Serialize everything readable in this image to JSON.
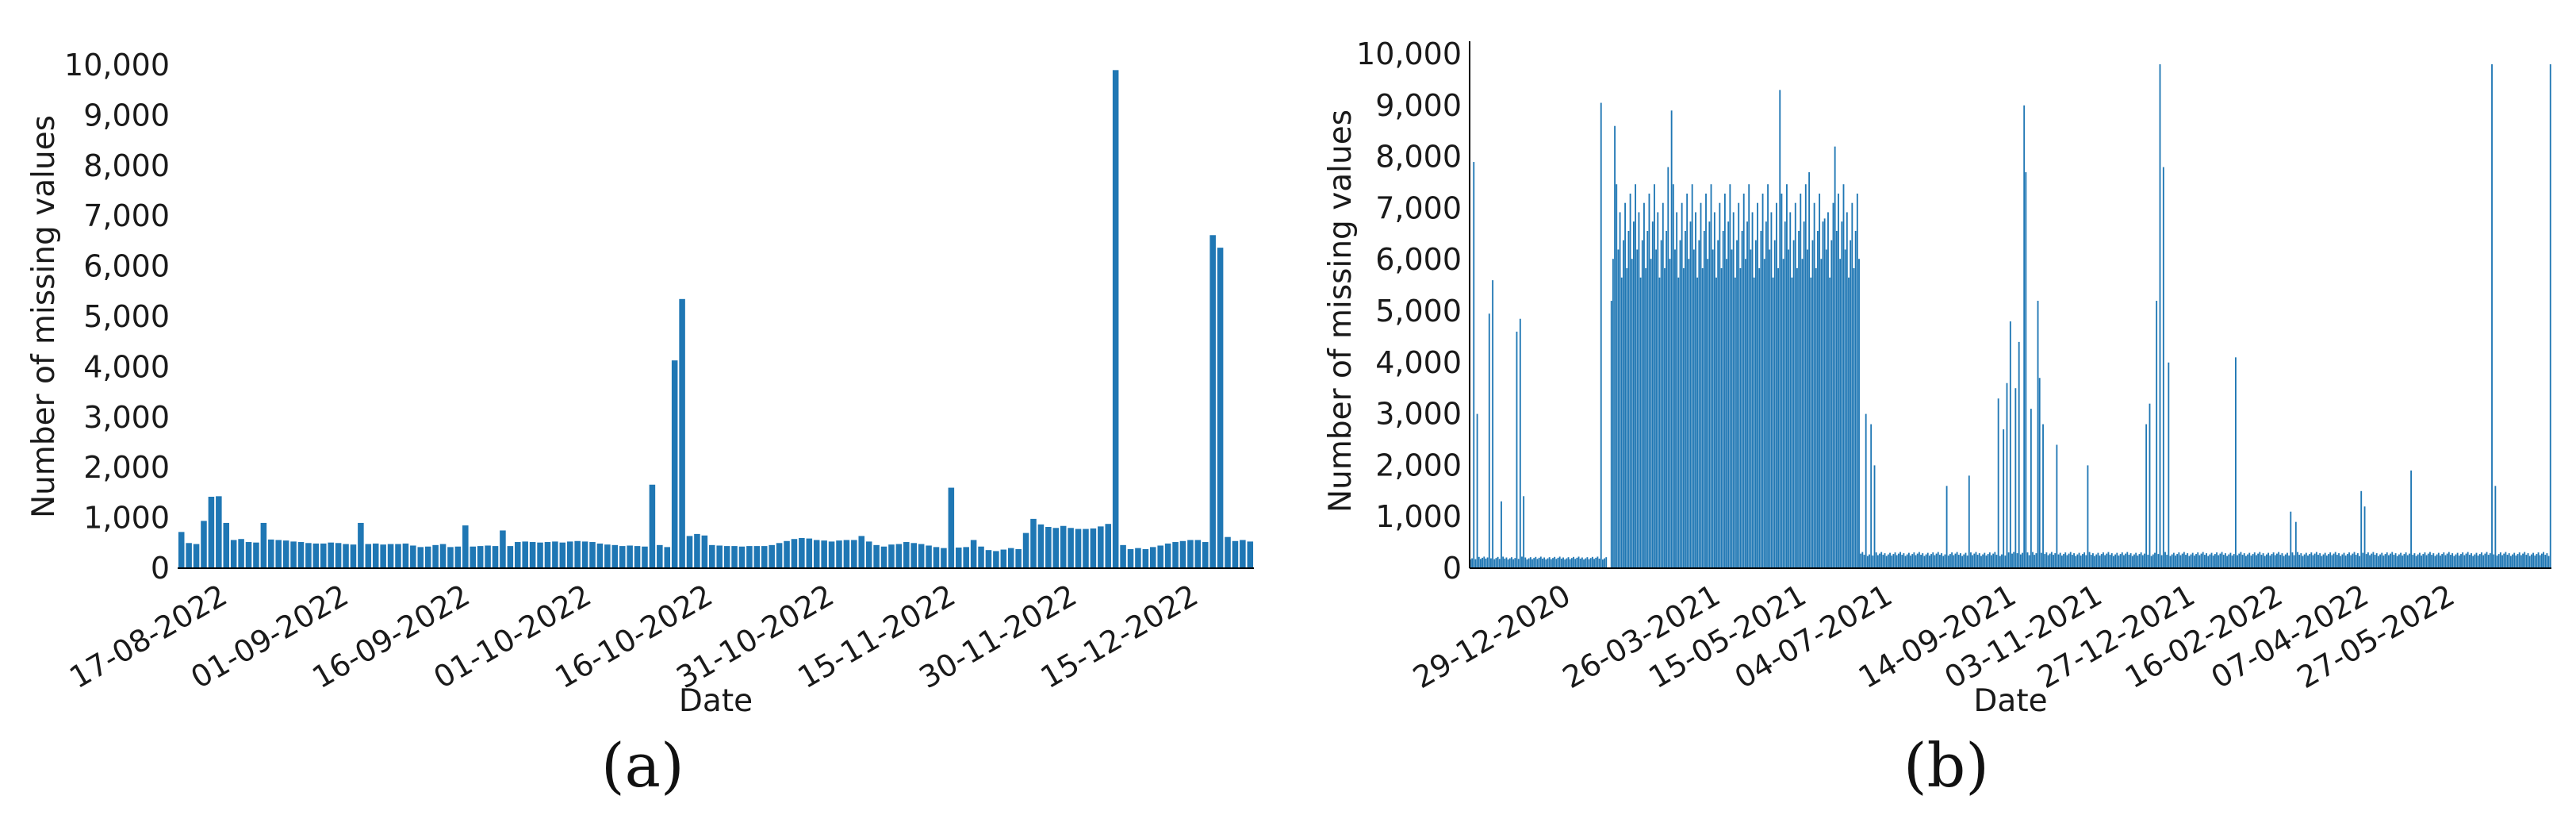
{
  "chart_data": [
    {
      "type": "bar",
      "panel_label": "(a)",
      "xlabel": "Date",
      "ylabel": "Number of missing values",
      "ylim": [
        0,
        10000
      ],
      "yticks": [
        "0",
        "1,000",
        "2,000",
        "3,000",
        "4,000",
        "5,000",
        "6,000",
        "7,000",
        "8,000",
        "9,000",
        "10,000"
      ],
      "xticks": [
        "17-08-2022",
        "01-09-2022",
        "16-09-2022",
        "01-10-2022",
        "16-10-2022",
        "31-10-2022",
        "15-11-2022",
        "30-11-2022",
        "15-12-2022"
      ],
      "x_start": "12-08-2022",
      "x_end": "23-12-2022",
      "color": "#1f77b4",
      "series": [
        {
          "values": [
            720,
            500,
            480,
            940,
            1420,
            1430,
            900,
            560,
            580,
            520,
            510,
            900,
            570,
            560,
            550,
            530,
            520,
            500,
            490,
            490,
            510,
            500,
            480,
            470,
            900,
            480,
            490,
            470,
            480,
            480,
            490,
            450,
            420,
            430,
            460,
            480,
            420,
            430,
            850,
            430,
            440,
            450,
            440,
            750,
            440,
            520,
            530,
            520,
            510,
            520,
            530,
            510,
            530,
            540,
            530,
            520,
            490,
            470,
            460,
            440,
            450,
            440,
            430,
            1660,
            460,
            420,
            4130,
            5350,
            640,
            680,
            650,
            460,
            450,
            440,
            440,
            430,
            440,
            440,
            440,
            460,
            500,
            540,
            580,
            600,
            590,
            560,
            550,
            530,
            550,
            560,
            560,
            640,
            530,
            460,
            430,
            470,
            480,
            520,
            500,
            480,
            450,
            420,
            400,
            1600,
            410,
            420,
            560,
            430,
            360,
            340,
            370,
            400,
            380,
            700,
            980,
            870,
            820,
            800,
            840,
            800,
            780,
            780,
            790,
            830,
            880,
            9900,
            460,
            380,
            400,
            380,
            420,
            450,
            490,
            520,
            540,
            560,
            560,
            520,
            6620,
            6370,
            620,
            540,
            560,
            530
          ]
        }
      ]
    },
    {
      "type": "bar",
      "panel_label": "(b)",
      "xlabel": "Date",
      "ylabel": "Number of missing values",
      "ylim": [
        0,
        10000
      ],
      "yticks": [
        "0",
        "1,000",
        "2,000",
        "3,000",
        "4,000",
        "5,000",
        "6,000",
        "7,000",
        "8,000",
        "9,000",
        "10,000"
      ],
      "xticks": [
        "29-12-2020",
        "26-03-2021",
        "15-05-2021",
        "04-07-2021",
        "14-09-2021",
        "03-11-2021",
        "27-12-2021",
        "16-02-2022",
        "07-04-2022",
        "27-05-2022"
      ],
      "x_start": "06-11-2020",
      "x_end": "27-07-2022",
      "color": "#1f77b4",
      "baseline_ranges": [
        {
          "from": "06-11-2020",
          "to": "24-01-2021",
          "value": 200
        },
        {
          "from": "27-01-2021",
          "to": "21-06-2021",
          "value": 6650
        },
        {
          "from": "21-06-2021",
          "to": "27-07-2022",
          "value": 280
        }
      ],
      "spikes": [
        {
          "date": "08-11-2020",
          "value": 7900
        },
        {
          "date": "10-11-2020",
          "value": 3000
        },
        {
          "date": "17-11-2020",
          "value": 4950
        },
        {
          "date": "19-11-2020",
          "value": 5600
        },
        {
          "date": "24-11-2020",
          "value": 1300
        },
        {
          "date": "03-12-2020",
          "value": 4600
        },
        {
          "date": "05-12-2020",
          "value": 4850
        },
        {
          "date": "07-12-2020",
          "value": 1400
        },
        {
          "date": "21-01-2021",
          "value": 9050
        },
        {
          "date": "27-01-2021",
          "value": 5200
        },
        {
          "date": "29-01-2021",
          "value": 8600
        },
        {
          "date": "01-03-2021",
          "value": 7800
        },
        {
          "date": "03-03-2021",
          "value": 8900
        },
        {
          "date": "05-05-2021",
          "value": 9300
        },
        {
          "date": "22-05-2021",
          "value": 7700
        },
        {
          "date": "31-05-2021",
          "value": 6800
        },
        {
          "date": "06-06-2021",
          "value": 8200
        },
        {
          "date": "24-06-2021",
          "value": 3000
        },
        {
          "date": "27-06-2021",
          "value": 2800
        },
        {
          "date": "29-06-2021",
          "value": 2000
        },
        {
          "date": "10-08-2021",
          "value": 1600
        },
        {
          "date": "23-08-2021",
          "value": 1800
        },
        {
          "date": "09-09-2021",
          "value": 3300
        },
        {
          "date": "12-09-2021",
          "value": 2700
        },
        {
          "date": "14-09-2021",
          "value": 3600
        },
        {
          "date": "16-09-2021",
          "value": 4800
        },
        {
          "date": "19-09-2021",
          "value": 3500
        },
        {
          "date": "21-09-2021",
          "value": 4400
        },
        {
          "date": "24-09-2021",
          "value": 9000
        },
        {
          "date": "25-09-2021",
          "value": 7700
        },
        {
          "date": "28-09-2021",
          "value": 3100
        },
        {
          "date": "02-10-2021",
          "value": 5200
        },
        {
          "date": "03-10-2021",
          "value": 3700
        },
        {
          "date": "05-10-2021",
          "value": 2800
        },
        {
          "date": "13-10-2021",
          "value": 2400
        },
        {
          "date": "31-10-2021",
          "value": 2000
        },
        {
          "date": "04-12-2021",
          "value": 2800
        },
        {
          "date": "06-12-2021",
          "value": 3200
        },
        {
          "date": "10-12-2021",
          "value": 5200
        },
        {
          "date": "12-12-2021",
          "value": 9800
        },
        {
          "date": "14-12-2021",
          "value": 7800
        },
        {
          "date": "17-12-2021",
          "value": 4000
        },
        {
          "date": "25-01-2022",
          "value": 4100
        },
        {
          "date": "26-02-2022",
          "value": 1100
        },
        {
          "date": "01-03-2022",
          "value": 900
        },
        {
          "date": "08-04-2022",
          "value": 1500
        },
        {
          "date": "10-04-2022",
          "value": 1200
        },
        {
          "date": "07-05-2022",
          "value": 1900
        },
        {
          "date": "23-06-2022",
          "value": 9800
        },
        {
          "date": "25-06-2022",
          "value": 1600
        },
        {
          "date": "27-07-2022",
          "value": 9800
        }
      ]
    }
  ]
}
